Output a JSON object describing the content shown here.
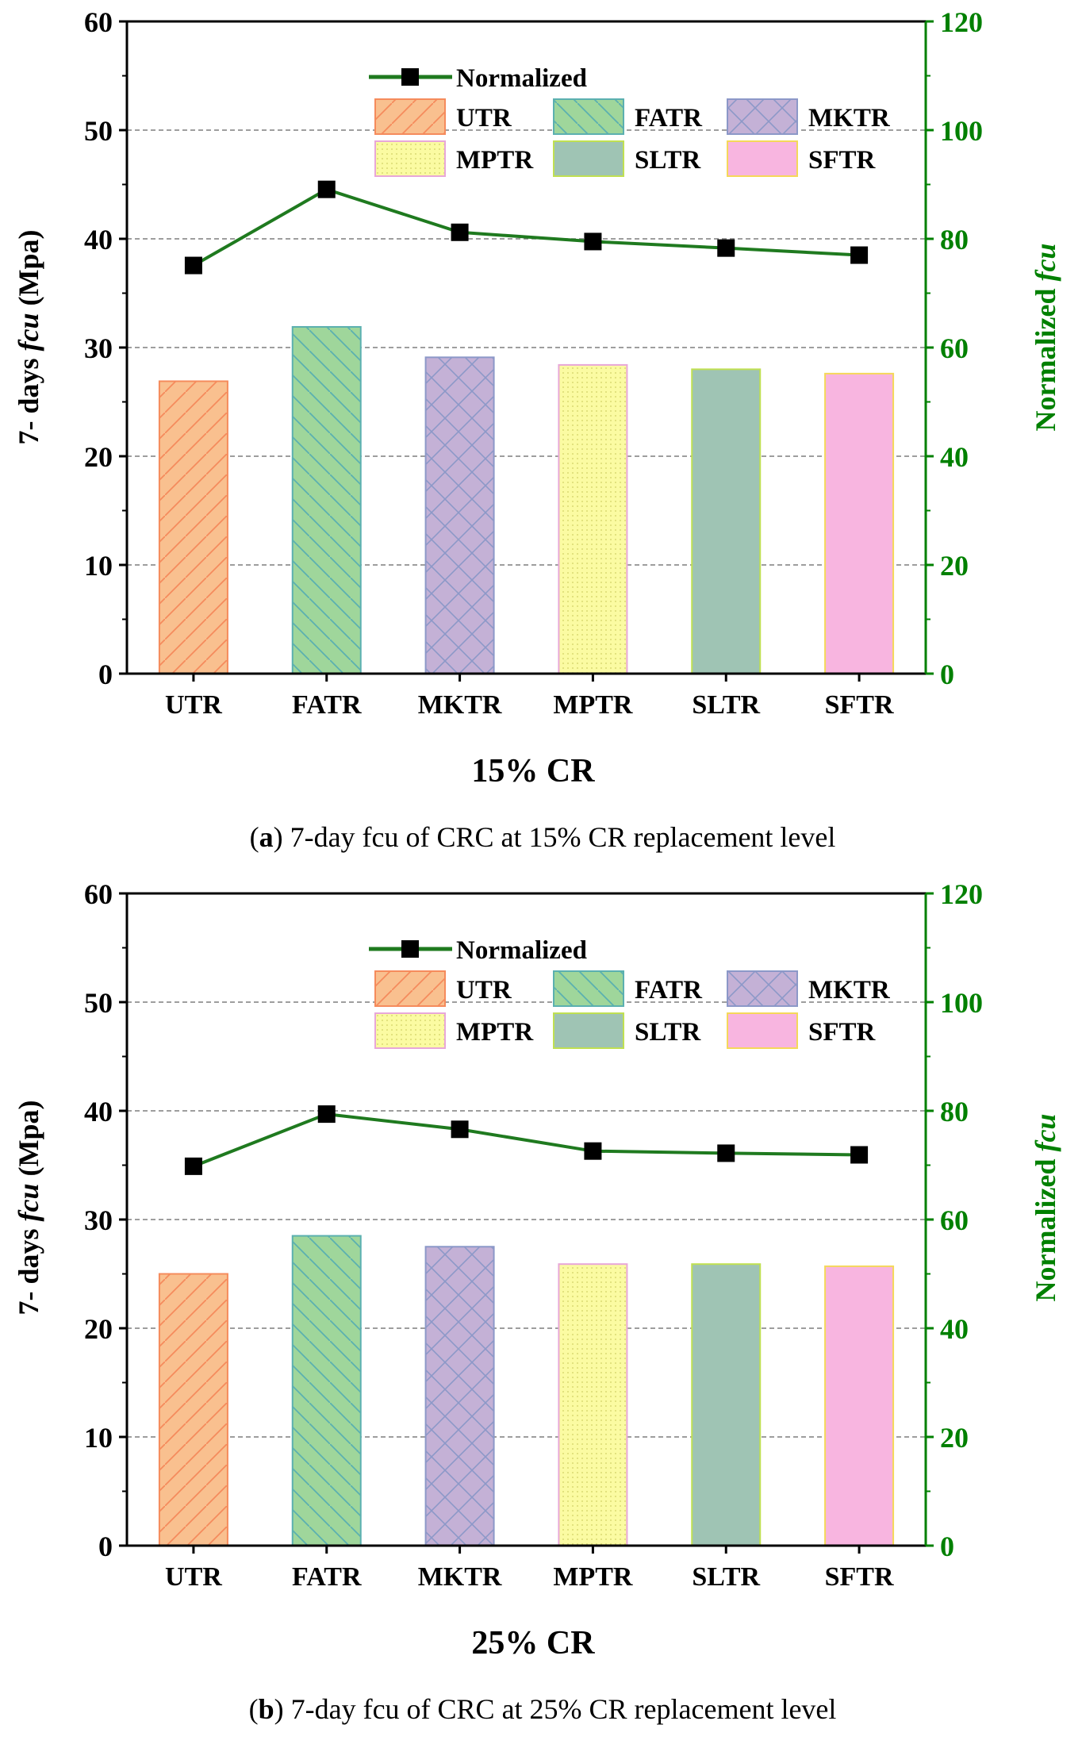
{
  "figure": {
    "panels": [
      {
        "caption_label": "a",
        "caption_text": "7-day fcu of CRC at 15% CR replacement level"
      },
      {
        "caption_label": "b",
        "caption_text": "7-day fcu of CRC at 25% CR replacement level"
      }
    ]
  },
  "chart_data": [
    {
      "type": "bar",
      "categories": [
        "UTR",
        "FATR",
        "MKTR",
        "MPTR",
        "SLTR",
        "SFTR"
      ],
      "values": [
        26.9,
        31.9,
        29.1,
        28.4,
        28.0,
        27.6
      ],
      "line": {
        "name": "Normalized",
        "values": [
          75.1,
          89.1,
          81.2,
          79.5,
          78.3,
          77.0
        ]
      },
      "xlabel": "15% CR",
      "ylabel_prefix": "7- days ",
      "ylabel_italic": "fcu",
      "ylabel_suffix": " (Mpa)",
      "y2label_prefix": "Normalized  ",
      "y2label_italic": "fcu",
      "ylim": [
        0,
        60
      ],
      "yticks": [
        "0",
        "10",
        "20",
        "30",
        "40",
        "50",
        "60"
      ],
      "y2lim": [
        0,
        120
      ],
      "y2ticks": [
        "0",
        "20",
        "40",
        "60",
        "80",
        "100",
        "120"
      ],
      "grid": true,
      "legend_position": "top-right"
    },
    {
      "type": "bar",
      "categories": [
        "UTR",
        "FATR",
        "MKTR",
        "MPTR",
        "SLTR",
        "SFTR"
      ],
      "values": [
        25.0,
        28.5,
        27.5,
        25.9,
        25.9,
        25.7
      ],
      "line": {
        "name": "Normalized",
        "values": [
          69.8,
          79.4,
          76.6,
          72.6,
          72.2,
          71.9
        ]
      },
      "xlabel": "25% CR",
      "ylabel_prefix": "7- days ",
      "ylabel_italic": "fcu",
      "ylabel_suffix": " (Mpa)",
      "y2label_prefix": "Normalized  ",
      "y2label_italic": "fcu",
      "ylim": [
        0,
        60
      ],
      "yticks": [
        "0",
        "10",
        "20",
        "30",
        "40",
        "50",
        "60"
      ],
      "y2lim": [
        0,
        120
      ],
      "y2ticks": [
        "0",
        "20",
        "40",
        "60",
        "80",
        "100",
        "120"
      ],
      "grid": true,
      "legend_position": "top-right"
    }
  ],
  "colors": {
    "UTR": {
      "fill": "#f9c08f",
      "edge": "#f58b5c"
    },
    "FATR": {
      "fill": "#9fd69b",
      "edge": "#5bb0b0"
    },
    "MKTR": {
      "fill": "#c4b1d6",
      "edge": "#8c98c8"
    },
    "MPTR": {
      "fill": "#fbfba2",
      "edge": "#e8a7d8"
    },
    "SLTR": {
      "fill": "#9fc4b4",
      "edge": "#c0e052"
    },
    "SFTR": {
      "fill": "#f8b5e0",
      "edge": "#f5d85a"
    },
    "line": "#1f7a1f",
    "right_axis": "#008000",
    "grid": "#7f7f7f",
    "axis": "#000000"
  }
}
